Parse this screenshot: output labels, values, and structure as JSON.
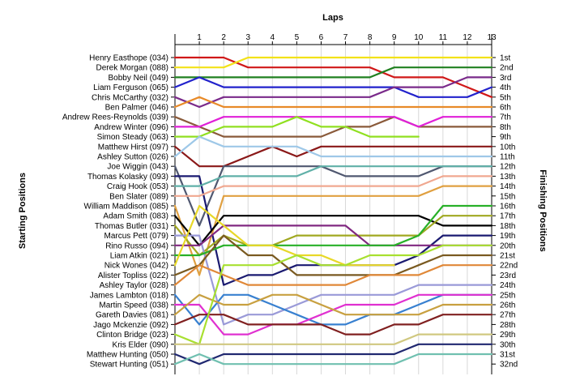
{
  "chart_data": {
    "type": "line",
    "title": "",
    "top_axis_label": "Laps",
    "left_axis_label": "Starting Positions",
    "right_axis_label": "Finishing Positions",
    "x": [
      0,
      1,
      2,
      3,
      4,
      5,
      6,
      7,
      8,
      9,
      10,
      11,
      12,
      13
    ],
    "x_ticks": [
      "1",
      "2",
      "3",
      "4",
      "5",
      "6",
      "7",
      "8",
      "9",
      "10",
      "11",
      "12",
      "13"
    ],
    "xlim": [
      0,
      13
    ],
    "ylim": [
      1,
      32
    ],
    "y_inverted": true,
    "grid": true,
    "finishing_labels": [
      "1st",
      "2nd",
      "3rd",
      "4th",
      "5th",
      "6th",
      "7th",
      "8th",
      "9th",
      "10th",
      "11th",
      "12th",
      "13th",
      "14th",
      "15th",
      "16th",
      "17th",
      "18th",
      "19th",
      "20th",
      "21st",
      "22nd",
      "23rd",
      "24th",
      "25th",
      "26th",
      "27th",
      "28th",
      "29th",
      "30th",
      "31st",
      "32nd"
    ],
    "series": [
      {
        "name": "Henry Easthope (034)",
        "color": "#d01818",
        "positions": [
          1,
          1,
          1,
          2,
          2,
          2,
          2,
          2,
          2,
          3,
          3,
          3,
          4,
          5
        ]
      },
      {
        "name": "Derek Morgan (088)",
        "color": "#f2e218",
        "positions": [
          2,
          2,
          2,
          1,
          1,
          1,
          1,
          1,
          1,
          1,
          1,
          1,
          1,
          1
        ]
      },
      {
        "name": "Bobby Neil (049)",
        "color": "#208020",
        "positions": [
          3,
          3,
          3,
          3,
          3,
          3,
          3,
          3,
          3,
          2,
          2,
          2,
          2,
          2
        ]
      },
      {
        "name": "Liam Ferguson (065)",
        "color": "#2222cc",
        "positions": [
          4,
          3,
          4,
          4,
          4,
          4,
          4,
          4,
          4,
          4,
          5,
          5,
          5,
          4
        ]
      },
      {
        "name": "Chris McCarthy (032)",
        "color": "#7a2a8a",
        "positions": [
          5,
          6,
          5,
          5,
          5,
          5,
          5,
          5,
          5,
          4,
          4,
          4,
          3,
          3
        ]
      },
      {
        "name": "Ben Palmer (046)",
        "color": "#e88a28",
        "positions": [
          6,
          5,
          6,
          6,
          6,
          6,
          6,
          6,
          6,
          6,
          6,
          6,
          6,
          6
        ]
      },
      {
        "name": "Andrew Rees-Reynolds (039)",
        "color": "#8a5a3a",
        "positions": [
          7,
          8,
          9,
          9,
          9,
          9,
          9,
          8,
          8,
          7,
          8,
          8,
          8,
          8
        ]
      },
      {
        "name": "Andrew Winter (096)",
        "color": "#e020d8",
        "positions": [
          8,
          8,
          7,
          7,
          7,
          7,
          7,
          7,
          7,
          7,
          8,
          7,
          7,
          7
        ]
      },
      {
        "name": "Simon Steady (063)",
        "color": "#90e020",
        "positions": [
          9,
          9,
          8,
          8,
          8,
          7,
          8,
          8,
          9,
          9,
          9
        ]
      },
      {
        "name": "Matthew Hirst (097)",
        "color": "#8a1818",
        "positions": [
          10,
          12,
          12,
          11,
          10,
          11,
          10,
          10,
          10,
          10,
          10,
          10,
          10,
          10
        ]
      },
      {
        "name": "Ashley Sutton (026)",
        "color": "#9ec8e8",
        "positions": [
          11,
          9,
          10,
          10,
          10,
          10,
          11,
          11,
          11,
          11,
          11,
          11,
          11,
          11
        ]
      },
      {
        "name": "Joe Wiggin (043)",
        "color": "#505870",
        "positions": [
          12,
          18,
          12,
          12,
          12,
          12,
          12,
          13,
          13,
          13,
          13,
          12,
          12,
          12
        ]
      },
      {
        "name": "Thomas Kolasky (093)",
        "color": "#1a1a70",
        "positions": [
          13,
          13,
          24,
          23,
          23,
          22,
          22,
          22,
          22,
          22,
          21,
          19,
          19,
          19
        ]
      },
      {
        "name": "Craig Hook (053)",
        "color": "#60b0a8",
        "positions": [
          14,
          14,
          13,
          13,
          13,
          13,
          12,
          12,
          12,
          12,
          12,
          12,
          12,
          12
        ]
      },
      {
        "name": "Ben Slater (089)",
        "color": "#f0a890",
        "positions": [
          15,
          15,
          14,
          14,
          14,
          14,
          14,
          14,
          14,
          14,
          14,
          13,
          13,
          13
        ]
      },
      {
        "name": "William Maddison (085)",
        "color": "#e0a040",
        "positions": [
          16,
          23,
          15,
          15,
          15,
          15,
          15,
          15,
          15,
          15,
          15,
          14,
          14,
          14
        ]
      },
      {
        "name": "Adam Smith (083)",
        "color": "#000000",
        "positions": [
          17,
          20,
          17,
          17,
          17,
          17,
          17,
          17,
          17,
          17,
          17,
          18,
          18,
          18
        ]
      },
      {
        "name": "Thomas Butler (031)",
        "color": "#a0a820",
        "positions": [
          18,
          21,
          19,
          20,
          20,
          19,
          19,
          19,
          19,
          19,
          19,
          17,
          17,
          17
        ]
      },
      {
        "name": "Marcus Pett (079)",
        "color": "#9a9ad8",
        "positions": [
          19,
          19,
          28,
          27,
          27,
          26,
          25,
          25,
          25,
          25,
          24,
          24,
          24,
          24
        ]
      },
      {
        "name": "Rino Russo (094)",
        "color": "#802880",
        "positions": [
          20,
          20,
          18,
          18,
          18,
          18,
          18,
          18,
          20,
          20,
          20,
          20,
          20,
          20
        ]
      },
      {
        "name": "Liam Atkin (021)",
        "color": "#28b028",
        "positions": [
          21,
          21,
          20,
          20,
          20,
          20,
          20,
          20,
          20,
          20,
          19,
          16,
          16,
          16
        ]
      },
      {
        "name": "Nick Wones (042)",
        "color": "#e8d828",
        "positions": [
          22,
          16,
          18,
          20,
          20,
          21,
          21,
          22,
          22,
          22
        ]
      },
      {
        "name": "Alister Topliss (022)",
        "color": "#7a5a20",
        "positions": [
          23,
          22,
          19,
          21,
          21,
          23,
          23,
          23,
          23,
          23,
          22,
          21,
          21,
          21
        ]
      },
      {
        "name": "Ashley Taylor (028)",
        "color": "#e08838",
        "positions": [
          24,
          22,
          23,
          24,
          24,
          24,
          24,
          24,
          23,
          23,
          23,
          22,
          22,
          22
        ]
      },
      {
        "name": "James Lambton (018)",
        "color": "#3880d0",
        "positions": [
          25,
          28,
          25,
          25,
          26,
          27,
          28,
          28,
          27,
          27,
          26,
          25,
          25,
          25
        ]
      },
      {
        "name": "Martin Speed (038)",
        "color": "#e030d0",
        "positions": [
          26,
          26,
          29,
          29,
          28,
          28,
          27,
          26,
          26,
          26,
          25,
          25,
          25,
          25
        ]
      },
      {
        "name": "Gareth Davies (081)",
        "color": "#c8a040",
        "positions": [
          27,
          25,
          26,
          26,
          25,
          25,
          26,
          27,
          27,
          27,
          27,
          26,
          26,
          26
        ]
      },
      {
        "name": "Jago Mckenzie (092)",
        "color": "#802020",
        "positions": [
          28,
          27,
          27,
          28,
          28,
          28,
          28,
          29,
          29,
          28,
          28,
          27,
          27,
          27
        ]
      },
      {
        "name": "Clinton Bridge (023)",
        "color": "#a8e030",
        "positions": [
          29,
          30,
          22,
          22,
          22,
          21,
          22,
          22,
          21,
          21,
          21,
          20,
          20,
          20
        ]
      },
      {
        "name": "Kris Elder (090)",
        "color": "#d0c880",
        "positions": [
          30,
          30,
          30,
          30,
          30,
          30,
          30,
          30,
          30,
          30,
          29,
          29,
          29,
          29
        ]
      },
      {
        "name": "Matthew Hunting (050)",
        "color": "#202870",
        "positions": [
          31,
          32,
          31,
          31,
          31,
          31,
          31,
          31,
          31,
          31,
          30,
          30,
          30,
          30
        ]
      },
      {
        "name": "Stewart Hunting (051)",
        "color": "#70c0b0",
        "positions": [
          32,
          31,
          32,
          32,
          32,
          32,
          32,
          32,
          32,
          32,
          31,
          31,
          31,
          31
        ]
      }
    ]
  }
}
